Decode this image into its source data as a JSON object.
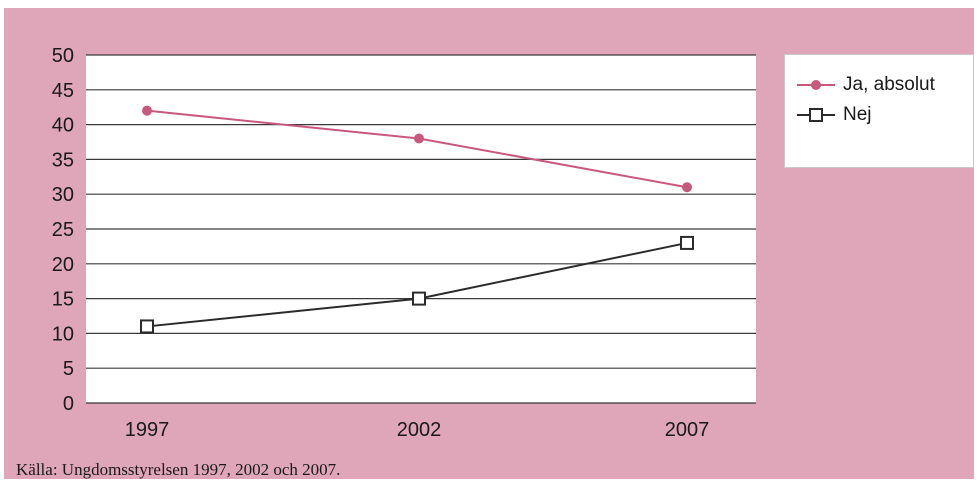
{
  "chart_data": {
    "type": "line",
    "categories": [
      "1997",
      "2002",
      "2007"
    ],
    "series": [
      {
        "name": "Ja, absolut",
        "values": [
          42,
          38,
          31
        ],
        "color": "#c9587d",
        "marker": "circle-filled"
      },
      {
        "name": "Nej",
        "values": [
          11,
          15,
          23
        ],
        "color": "#2b2b2b",
        "marker": "square-open"
      }
    ],
    "title": "",
    "xlabel": "",
    "ylabel": "",
    "ylim": [
      0,
      50
    ],
    "yticks": [
      "0",
      "5",
      "10",
      "15",
      "20",
      "25",
      "30",
      "35",
      "40",
      "45",
      "50"
    ],
    "grid": "horizontal",
    "legend_position": "top-right, outside plot"
  },
  "source": "Källa: Ungdomsstyrelsen 1997, 2002 och 2007.",
  "colors": {
    "background": "#dea6b8",
    "plot_area": "#ffffff",
    "grid": "#3a3a3a"
  }
}
